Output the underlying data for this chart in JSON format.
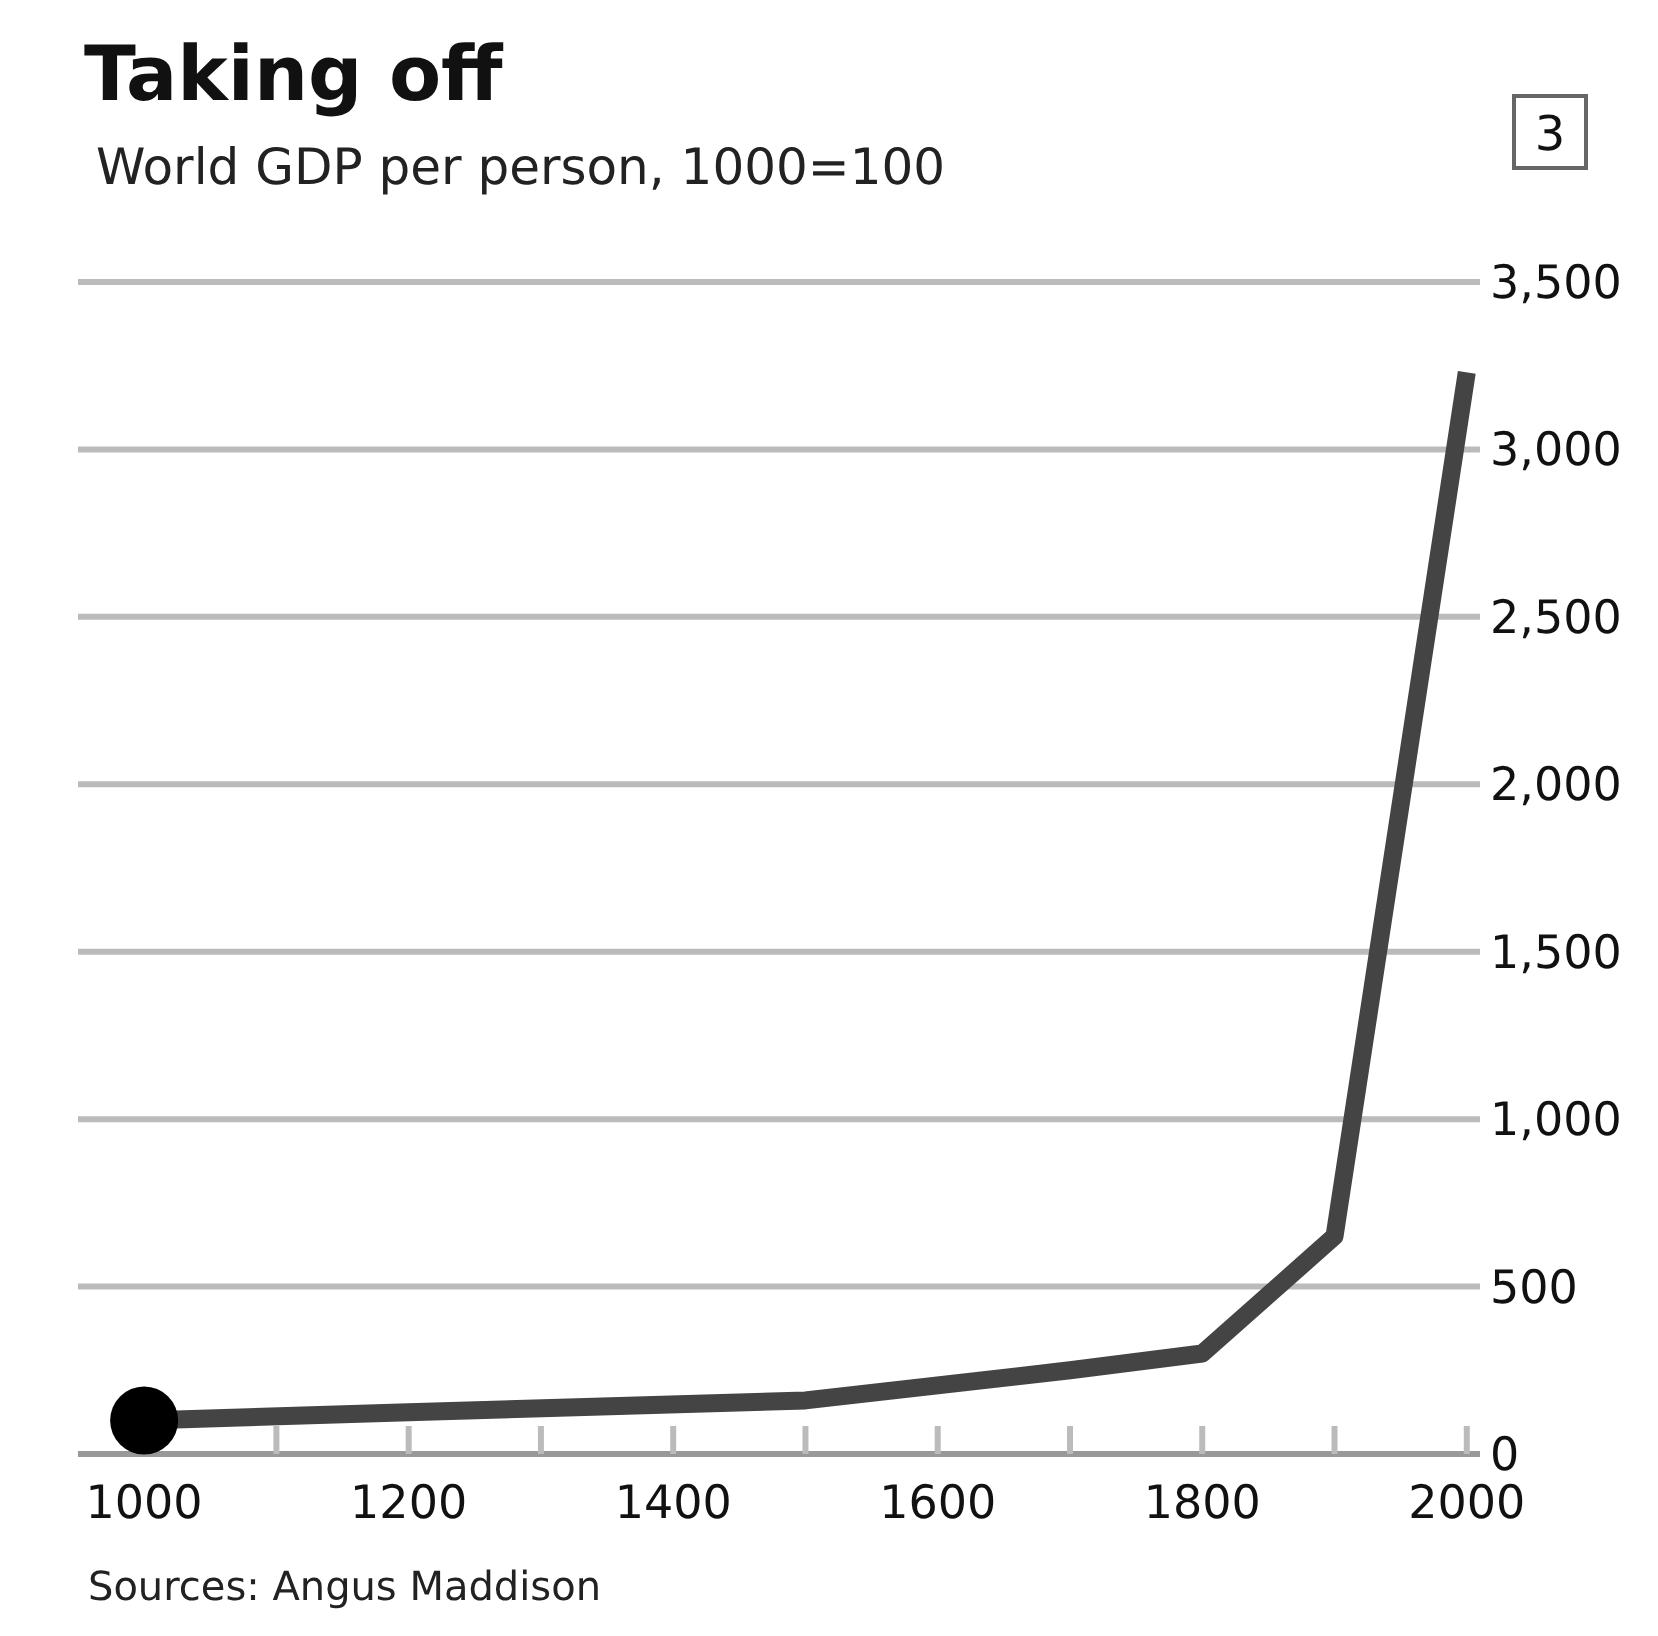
{
  "chart_data": {
    "type": "line",
    "title": "Taking off",
    "subtitle": "World GDP per person, 1000=100",
    "annotations": [
      "3",
      "Sources: Angus Maddison"
    ],
    "series": [
      {
        "color": "#444444",
        "x": [
          1000,
          1200,
          1500,
          1600,
          1700,
          1800,
          1900,
          2000
        ],
        "values": [
          100,
          125,
          160,
          205,
          250,
          300,
          650,
          3230
        ]
      },
      {
        "type": "scatter",
        "color": "#000000",
        "x": [
          1000
        ],
        "values": [
          100
        ]
      }
    ],
    "xlim": [
      950,
      2010
    ],
    "xticks": [
      1000,
      {
        "value": 1100,
        "label": null
      },
      1200,
      {
        "value": 1300,
        "label": null
      },
      1400,
      {
        "value": 1500,
        "label": null
      },
      1600,
      {
        "value": 1700,
        "label": null
      },
      1800,
      {
        "value": 1900,
        "label": null
      },
      2000
    ],
    "ylim": [
      0,
      3500
    ],
    "yticks": [
      0,
      500,
      {
        "value": 1000,
        "label": "1,000"
      },
      {
        "value": 1500,
        "label": "1,500"
      },
      {
        "value": 2000,
        "label": "2,000"
      },
      {
        "value": 2500,
        "label": "2,500"
      },
      {
        "value": 3000,
        "label": "3,000"
      },
      {
        "value": 3500,
        "label": "3,500"
      }
    ],
    "grid": "y"
  }
}
